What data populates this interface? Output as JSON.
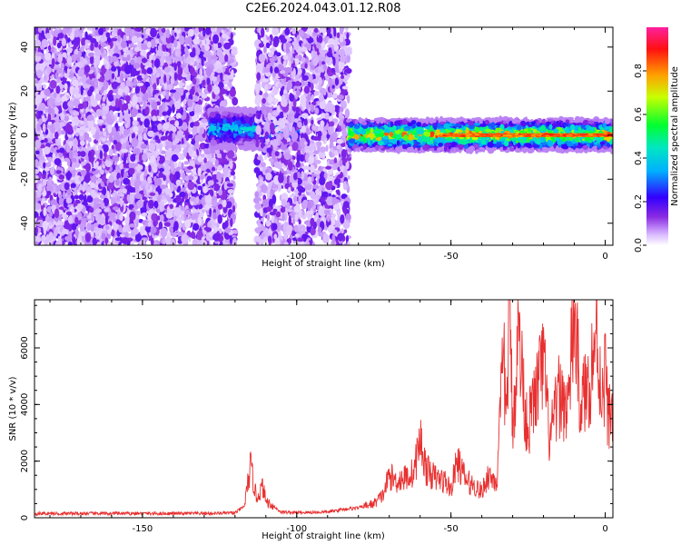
{
  "title": "C2E6.2024.043.01.12.R08",
  "colors": {
    "snr_line": "#e83030",
    "spectrogram_cmap": [
      "#ffffff",
      "#cfa8ff",
      "#8a2be2",
      "#3300ff",
      "#00c8ff",
      "#00ff40",
      "#ffff00",
      "#ff2020",
      "#ff20a0"
    ]
  },
  "chart_data": [
    {
      "type": "heatmap",
      "title": "",
      "xlabel": "Height of straight line (km)",
      "ylabel": "Frequency (Hz)",
      "xlim": [
        -185,
        2.5
      ],
      "ylim": [
        -50,
        49
      ],
      "xticks": [
        -150,
        -100,
        -50,
        0
      ],
      "yticks": [
        -40,
        -20,
        0,
        20,
        40
      ],
      "grid": false,
      "colorbar": {
        "label": "Normalized spectral amplitude",
        "ticks": [
          "0.0",
          "0.2",
          "0.4",
          "0.6",
          "0.8"
        ],
        "range": [
          0,
          1
        ]
      },
      "regions": [
        {
          "x_range": [
            -185,
            -120
          ],
          "description": "broadband noise",
          "amplitude": 0.2
        },
        {
          "x_range": [
            -128,
            -98
          ],
          "center_freq_hz": 3,
          "bandwidth_hz": 9,
          "peak_amplitude": 0.45
        },
        {
          "x_range": [
            -113,
            -83
          ],
          "description": "broadband noise",
          "amplitude": 0.15
        },
        {
          "x_range": [
            -83,
            2.5
          ],
          "center_freq_hz": 0,
          "bandwidth_hz": 7,
          "peak_amplitude": 0.9
        }
      ]
    },
    {
      "type": "line",
      "title": "",
      "xlabel": "Height of straight line (km)",
      "ylabel": "SNR (10 * v/v)",
      "xlim": [
        -185,
        2.5
      ],
      "ylim": [
        0,
        7700
      ],
      "xticks": [
        -150,
        -100,
        -50,
        0
      ],
      "yticks": [
        0,
        2000,
        4000,
        6000
      ],
      "grid": false,
      "series": [
        {
          "x": [
            -185,
            -170,
            -150,
            -130,
            -120,
            -117,
            -115,
            -113,
            -111,
            -110,
            -105,
            -100,
            -90,
            -85,
            -80,
            -75,
            -72,
            -70,
            -68,
            -65,
            -62,
            -60,
            -58,
            -55,
            -52,
            -50,
            -48,
            -45,
            -42,
            -40,
            -38,
            -35,
            -33,
            -32,
            -31,
            -30,
            -28,
            -26,
            -25,
            -22,
            -20,
            -18,
            -15,
            -12,
            -10,
            -8,
            -5,
            -3,
            -1,
            0,
            1,
            2.5
          ],
          "values": [
            150,
            150,
            150,
            150,
            170,
            400,
            1800,
            700,
            1100,
            600,
            200,
            180,
            200,
            300,
            350,
            500,
            800,
            1500,
            1300,
            1400,
            1600,
            2800,
            1700,
            1400,
            1300,
            1000,
            2000,
            1300,
            1100,
            900,
            1500,
            1300,
            5800,
            3500,
            7700,
            3200,
            6600,
            3800,
            3200,
            4600,
            5500,
            2700,
            4300,
            3900,
            7300,
            4000,
            4800,
            6600,
            4200,
            5200,
            3500,
            4000
          ]
        }
      ]
    }
  ]
}
